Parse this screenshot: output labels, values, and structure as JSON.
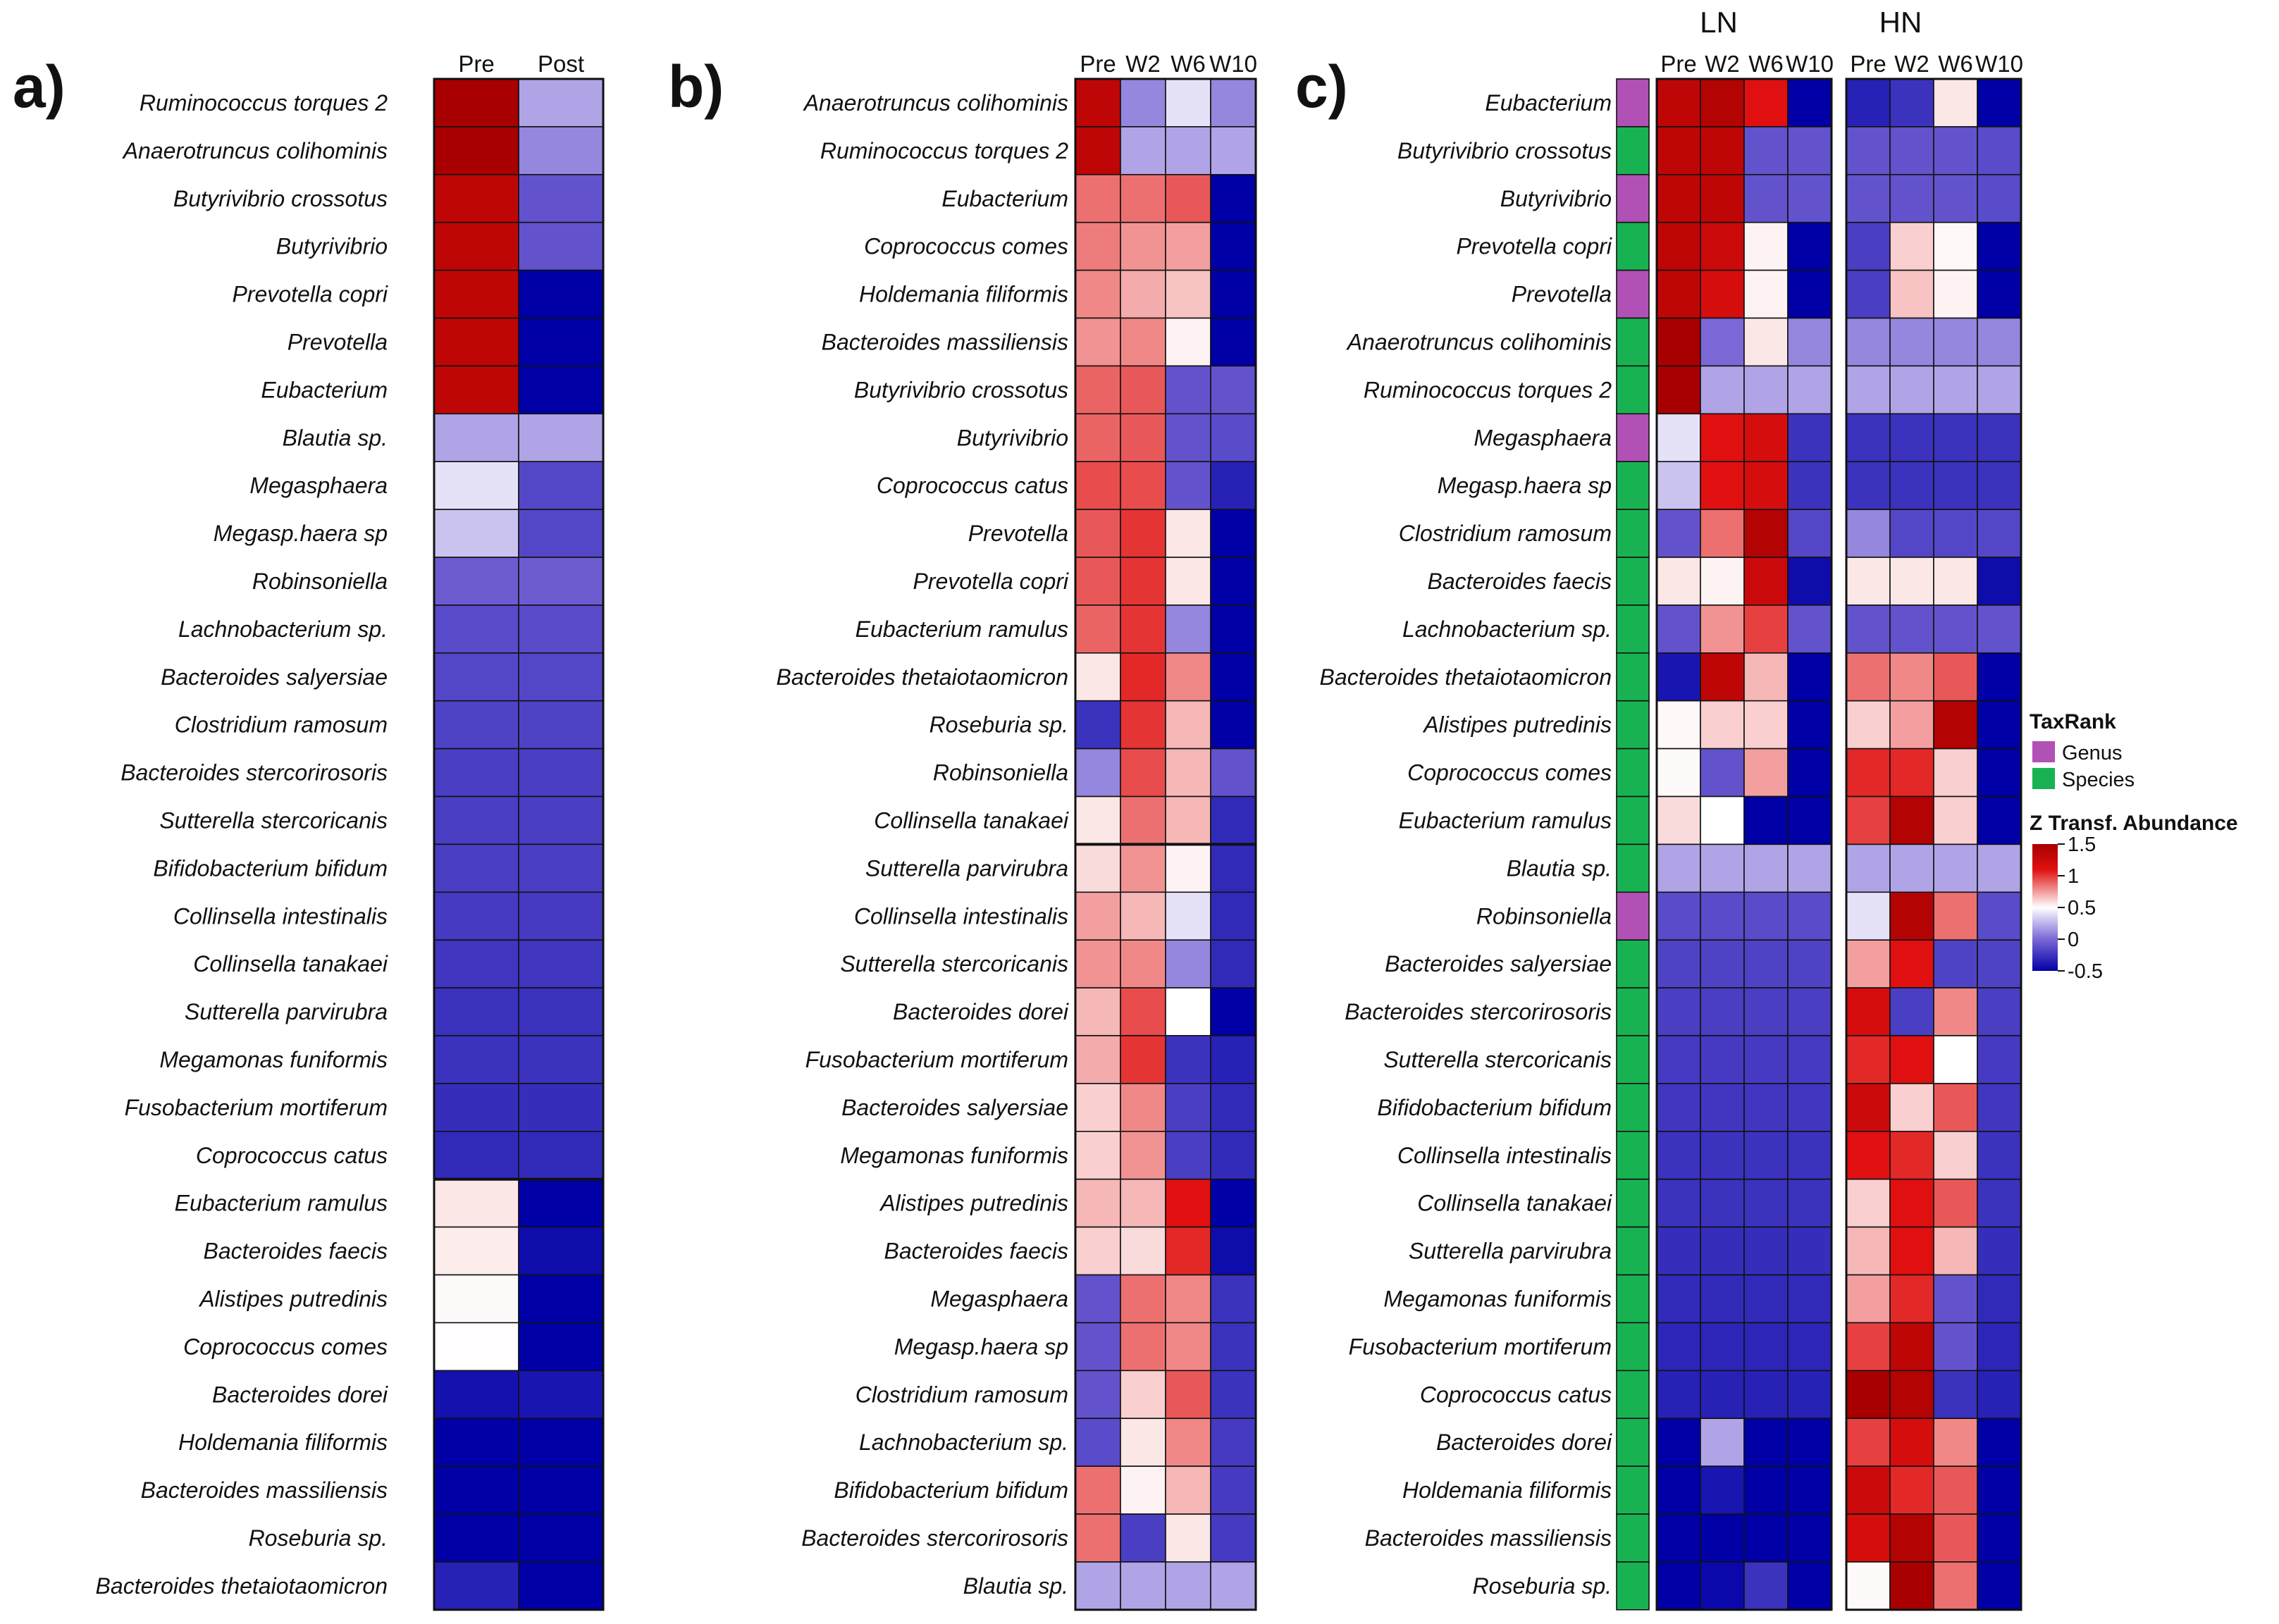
{
  "palette": {
    "low": "#0000a6",
    "mid_low": "#7b68d6",
    "mid": "#ffffff",
    "high": "#e01010",
    "max": "#a80000",
    "genus": "#b150b5",
    "species": "#19b253",
    "grid": "#111111"
  },
  "legend": {
    "taxrank_title": "TaxRank",
    "genus_label": "Genus",
    "species_label": "Species",
    "scale_title": "Z Transf. Abundance",
    "ticks": [
      {
        "v": 1.5,
        "label": "1.5"
      },
      {
        "v": 1.0,
        "label": "1"
      },
      {
        "v": 0.5,
        "label": "0.5"
      },
      {
        "v": 0.0,
        "label": "0"
      },
      {
        "v": -0.5,
        "label": "-0.5"
      }
    ]
  },
  "chart_data": [
    {
      "id": "a",
      "type": "heatmap",
      "panel_label": "a)",
      "columns": [
        "Pre",
        "Post"
      ],
      "rows": [
        "Ruminococcus torques 2",
        "Anaerotruncus colihominis",
        "Butyrivibrio crossotus",
        "Butyrivibrio",
        "Prevotella copri",
        "Prevotella",
        "Eubacterium",
        "Blautia sp.",
        "Megasphaera",
        "Megasp.haera sp",
        "Robinsoniella",
        "Lachnobacterium sp.",
        "Bacteroides salyersiae",
        "Clostridium ramosum",
        "Bacteroides stercorirosoris",
        "Sutterella stercoricanis",
        "Bifidobacterium bifidum",
        "Collinsella intestinalis",
        "Collinsella tanakaei",
        "Sutterella parvirubra",
        "Megamonas funiformis",
        "Fusobacterium mortiferum",
        "Coprococcus catus",
        "Eubacterium ramulus",
        "Bacteroides faecis",
        "Alistipes putredinis",
        "Coprococcus comes",
        "Bacteroides dorei",
        "Holdemania filiformis",
        "Bacteroides massiliensis",
        "Roseburia sp.",
        "Bacteroides thetaiotaomicron"
      ],
      "values": [
        [
          1.5,
          -0.15
        ],
        [
          1.5,
          -0.2
        ],
        [
          1.3,
          -0.3
        ],
        [
          1.3,
          -0.3
        ],
        [
          1.3,
          -0.5
        ],
        [
          1.3,
          -0.5
        ],
        [
          1.3,
          -0.5
        ],
        [
          -0.15,
          -0.15
        ],
        [
          -0.05,
          -0.33
        ],
        [
          -0.1,
          -0.33
        ],
        [
          -0.28,
          -0.28
        ],
        [
          -0.32,
          -0.32
        ],
        [
          -0.33,
          -0.33
        ],
        [
          -0.34,
          -0.34
        ],
        [
          -0.35,
          -0.35
        ],
        [
          -0.35,
          -0.35
        ],
        [
          -0.35,
          -0.35
        ],
        [
          -0.36,
          -0.36
        ],
        [
          -0.37,
          -0.37
        ],
        [
          -0.38,
          -0.38
        ],
        [
          -0.38,
          -0.38
        ],
        [
          -0.39,
          -0.39
        ],
        [
          -0.4,
          -0.4
        ],
        [
          0.1,
          -0.5
        ],
        [
          0.08,
          -0.47
        ],
        [
          0.02,
          -0.5
        ],
        [
          0.01,
          -0.5
        ],
        [
          -0.46,
          -0.45
        ],
        [
          -0.5,
          -0.5
        ],
        [
          -0.5,
          -0.5
        ],
        [
          -0.5,
          -0.5
        ],
        [
          -0.42,
          -0.5
        ]
      ],
      "group_breaks": [
        23
      ]
    },
    {
      "id": "b",
      "type": "heatmap",
      "panel_label": "b)",
      "columns": [
        "Pre",
        "W2",
        "W6",
        "W10"
      ],
      "rows": [
        "Anaerotruncus colihominis",
        "Ruminococcus torques 2",
        "Eubacterium",
        "Coprococcus comes",
        "Holdemania filiformis",
        "Bacteroides massiliensis",
        "Butyrivibrio crossotus",
        "Butyrivibrio",
        "Coprococcus catus",
        "Prevotella",
        "Prevotella copri",
        "Eubacterium ramulus",
        "Bacteroides thetaiotaomicron",
        "Roseburia sp.",
        "Robinsoniella",
        "Collinsella tanakaei",
        "Sutterella parvirubra",
        "Collinsella intestinalis",
        "Sutterella stercoricanis",
        "Bacteroides dorei",
        "Fusobacterium mortiferum",
        "Bacteroides salyersiae",
        "Megamonas funiformis",
        "Alistipes putredinis",
        "Bacteroides faecis",
        "Megasphaera",
        "Megasp.haera sp",
        "Clostridium ramosum",
        "Lachnobacterium sp.",
        "Bifidobacterium bifidum",
        "Bacteroides stercorirosoris",
        "Blautia sp."
      ],
      "values": [
        [
          1.3,
          -0.2,
          -0.05,
          -0.2
        ],
        [
          1.3,
          -0.15,
          -0.15,
          -0.15
        ],
        [
          0.6,
          0.6,
          0.7,
          -0.5
        ],
        [
          0.55,
          0.45,
          0.4,
          -0.5
        ],
        [
          0.5,
          0.35,
          0.25,
          -0.5
        ],
        [
          0.45,
          0.5,
          0.05,
          -0.5
        ],
        [
          0.65,
          0.7,
          -0.3,
          -0.3
        ],
        [
          0.65,
          0.7,
          -0.3,
          -0.32
        ],
        [
          0.75,
          0.75,
          -0.3,
          -0.42
        ],
        [
          0.7,
          0.85,
          0.1,
          -0.5
        ],
        [
          0.7,
          0.85,
          0.1,
          -0.5
        ],
        [
          0.65,
          0.85,
          -0.2,
          -0.5
        ],
        [
          0.1,
          0.9,
          0.5,
          -0.5
        ],
        [
          -0.38,
          0.85,
          0.3,
          -0.5
        ],
        [
          -0.2,
          0.75,
          0.3,
          -0.3
        ],
        [
          0.1,
          0.6,
          0.3,
          -0.4
        ],
        [
          0.15,
          0.45,
          0.05,
          -0.4
        ],
        [
          0.4,
          0.3,
          -0.05,
          -0.4
        ],
        [
          0.45,
          0.5,
          -0.2,
          -0.4
        ],
        [
          0.3,
          0.75,
          0.0,
          -0.5
        ],
        [
          0.35,
          0.85,
          -0.38,
          -0.42
        ],
        [
          0.2,
          0.5,
          -0.35,
          -0.4
        ],
        [
          0.2,
          0.45,
          -0.35,
          -0.4
        ],
        [
          0.3,
          0.3,
          1.0,
          -0.5
        ],
        [
          0.2,
          0.15,
          0.9,
          -0.47
        ],
        [
          -0.3,
          0.6,
          0.5,
          -0.38
        ],
        [
          -0.3,
          0.6,
          0.5,
          -0.38
        ],
        [
          -0.3,
          0.2,
          0.7,
          -0.38
        ],
        [
          -0.32,
          0.1,
          0.5,
          -0.36
        ],
        [
          0.6,
          0.05,
          0.3,
          -0.36
        ],
        [
          0.6,
          -0.35,
          0.1,
          -0.36
        ],
        [
          -0.15,
          -0.15,
          -0.15,
          -0.15
        ]
      ],
      "group_breaks": [
        16
      ]
    },
    {
      "id": "c",
      "type": "heatmap",
      "panel_label": "c)",
      "groups": [
        "LN",
        "HN"
      ],
      "columns": [
        "Pre",
        "W2",
        "W6",
        "W10",
        "Pre",
        "W2",
        "W6",
        "W10"
      ],
      "rows": [
        "Eubacterium",
        "Butyrivibrio crossotus",
        "Butyrivibrio",
        "Prevotella copri",
        "Prevotella",
        "Anaerotruncus colihominis",
        "Ruminococcus torques 2",
        "Megasphaera",
        "Megasp.haera sp",
        "Clostridium ramosum",
        "Bacteroides faecis",
        "Lachnobacterium sp.",
        "Bacteroides thetaiotaomicron",
        "Alistipes putredinis",
        "Coprococcus comes",
        "Eubacterium ramulus",
        "Blautia sp.",
        "Robinsoniella",
        "Bacteroides salyersiae",
        "Bacteroides stercorirosoris",
        "Sutterella stercoricanis",
        "Bifidobacterium bifidum",
        "Collinsella intestinalis",
        "Collinsella tanakaei",
        "Sutterella parvirubra",
        "Megamonas funiformis",
        "Fusobacterium mortiferum",
        "Coprococcus catus",
        "Bacteroides dorei",
        "Holdemania filiformis",
        "Bacteroides massiliensis",
        "Roseburia sp."
      ],
      "taxrank": [
        "Genus",
        "Species",
        "Genus",
        "Species",
        "Genus",
        "Species",
        "Species",
        "Genus",
        "Species",
        "Species",
        "Species",
        "Species",
        "Species",
        "Species",
        "Species",
        "Species",
        "Species",
        "Genus",
        "Species",
        "Species",
        "Species",
        "Species",
        "Species",
        "Species",
        "Species",
        "Species",
        "Species",
        "Species",
        "Species",
        "Species",
        "Species",
        "Species"
      ],
      "values": [
        [
          1.3,
          1.4,
          1.0,
          -0.5,
          -0.42,
          -0.38,
          0.1,
          -0.5
        ],
        [
          1.3,
          1.3,
          -0.3,
          -0.3,
          -0.3,
          -0.3,
          -0.3,
          -0.32
        ],
        [
          1.3,
          1.3,
          -0.3,
          -0.3,
          -0.3,
          -0.3,
          -0.3,
          -0.32
        ],
        [
          1.3,
          1.2,
          0.05,
          -0.5,
          -0.35,
          0.2,
          0.03,
          -0.5
        ],
        [
          1.3,
          1.1,
          0.05,
          -0.5,
          -0.35,
          0.25,
          0.05,
          -0.5
        ],
        [
          1.5,
          -0.25,
          0.1,
          -0.2,
          -0.2,
          -0.2,
          -0.2,
          -0.2
        ],
        [
          1.5,
          -0.15,
          -0.15,
          -0.15,
          -0.15,
          -0.15,
          -0.15,
          -0.15
        ],
        [
          -0.05,
          1.0,
          1.1,
          -0.38,
          -0.38,
          -0.38,
          -0.38,
          -0.38
        ],
        [
          -0.1,
          1.0,
          1.1,
          -0.38,
          -0.38,
          -0.38,
          -0.38,
          -0.38
        ],
        [
          -0.3,
          0.6,
          1.4,
          -0.33,
          -0.2,
          -0.33,
          -0.33,
          -0.33
        ],
        [
          0.1,
          0.05,
          1.2,
          -0.47,
          0.1,
          0.1,
          0.1,
          -0.47
        ],
        [
          -0.3,
          0.45,
          0.8,
          -0.3,
          -0.3,
          -0.3,
          -0.3,
          -0.3
        ],
        [
          -0.45,
          1.3,
          0.3,
          -0.5,
          0.6,
          0.5,
          0.7,
          -0.5
        ],
        [
          0.03,
          0.2,
          0.2,
          -0.5,
          0.2,
          0.4,
          1.4,
          -0.5
        ],
        [
          0.02,
          -0.3,
          0.4,
          -0.5,
          0.9,
          0.9,
          0.2,
          -0.5
        ],
        [
          0.15,
          0.0,
          -0.5,
          -0.5,
          0.8,
          1.4,
          0.2,
          -0.5
        ],
        [
          -0.15,
          -0.15,
          -0.15,
          -0.15,
          -0.15,
          -0.15,
          -0.15,
          -0.15
        ],
        [
          -0.32,
          -0.32,
          -0.32,
          -0.32,
          -0.05,
          1.4,
          0.6,
          -0.32
        ],
        [
          -0.34,
          -0.34,
          -0.34,
          -0.34,
          0.4,
          1.0,
          -0.34,
          -0.34
        ],
        [
          -0.35,
          -0.35,
          -0.35,
          -0.35,
          1.1,
          -0.35,
          0.5,
          -0.35
        ],
        [
          -0.36,
          -0.36,
          -0.36,
          -0.36,
          0.9,
          1.0,
          0.0,
          -0.36
        ],
        [
          -0.37,
          -0.37,
          -0.37,
          -0.37,
          1.2,
          0.2,
          0.7,
          -0.37
        ],
        [
          -0.38,
          -0.38,
          -0.38,
          -0.38,
          1.0,
          0.9,
          0.2,
          -0.38
        ],
        [
          -0.38,
          -0.38,
          -0.38,
          -0.38,
          0.2,
          1.0,
          0.7,
          -0.38
        ],
        [
          -0.39,
          -0.39,
          -0.39,
          -0.39,
          0.3,
          1.0,
          0.3,
          -0.39
        ],
        [
          -0.4,
          -0.4,
          -0.4,
          -0.4,
          0.4,
          0.9,
          -0.3,
          -0.4
        ],
        [
          -0.41,
          -0.41,
          -0.41,
          -0.41,
          0.8,
          1.3,
          -0.3,
          -0.41
        ],
        [
          -0.42,
          -0.42,
          -0.42,
          -0.42,
          1.5,
          1.4,
          -0.38,
          -0.42
        ],
        [
          -0.5,
          -0.15,
          -0.5,
          -0.5,
          0.8,
          1.1,
          0.5,
          -0.5
        ],
        [
          -0.5,
          -0.45,
          -0.5,
          -0.5,
          1.2,
          0.9,
          0.7,
          -0.5
        ],
        [
          -0.5,
          -0.5,
          -0.5,
          -0.5,
          1.1,
          1.4,
          0.7,
          -0.5
        ],
        [
          -0.5,
          -0.48,
          -0.38,
          -0.5,
          0.02,
          1.5,
          0.6,
          -0.5
        ]
      ],
      "group_breaks": []
    }
  ]
}
